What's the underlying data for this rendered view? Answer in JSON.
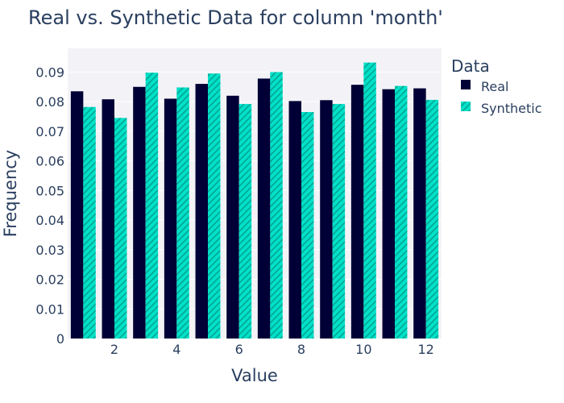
{
  "chart_data": {
    "type": "bar",
    "title": "Real vs. Synthetic Data for column 'month'",
    "xlabel": "Value",
    "ylabel": "Frequency",
    "categories": [
      1,
      2,
      3,
      4,
      5,
      6,
      7,
      8,
      9,
      10,
      11,
      12
    ],
    "xticks": [
      2,
      4,
      6,
      8,
      10,
      12
    ],
    "ylim": [
      0,
      0.098
    ],
    "yticks": [
      0,
      0.01,
      0.02,
      0.03,
      0.04,
      0.05,
      0.06,
      0.07,
      0.08,
      0.09
    ],
    "ytick_labels": [
      "0",
      "0.01",
      "0.02",
      "0.03",
      "0.04",
      "0.05",
      "0.06",
      "0.07",
      "0.08",
      "0.09"
    ],
    "legend_title": "Data",
    "legend_position": "top-right outside",
    "grid": true,
    "series": [
      {
        "name": "Real",
        "color": "#000036",
        "pattern": "solid",
        "values": [
          0.0835,
          0.0808,
          0.085,
          0.081,
          0.086,
          0.082,
          0.0878,
          0.0802,
          0.0805,
          0.0857,
          0.0842,
          0.0845
        ]
      },
      {
        "name": "Synthetic",
        "color": "#01e0c9",
        "pattern": "hatched",
        "values": [
          0.0782,
          0.0745,
          0.0898,
          0.0848,
          0.0895,
          0.0792,
          0.09,
          0.0765,
          0.0792,
          0.0932,
          0.0853,
          0.0806
        ]
      }
    ]
  }
}
